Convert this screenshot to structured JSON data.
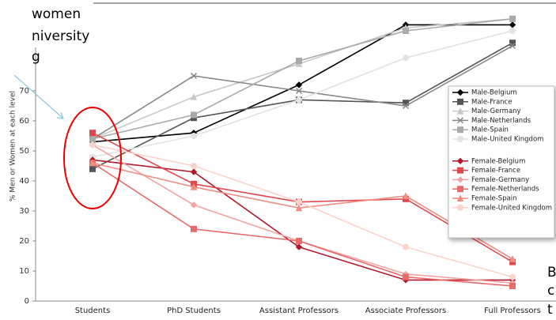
{
  "chart_data": {
    "type": "line",
    "y_label": "% Men or Women at each level",
    "categories": [
      "Students",
      "PhD Students",
      "Assistant Professors",
      "Associate Professors",
      "Full Professors"
    ],
    "ylim": [
      0,
      100
    ],
    "yticks": [
      0,
      10,
      20,
      30,
      40,
      50,
      60,
      70
    ],
    "series": [
      {
        "name": "Male-Belgium",
        "color": "#000000",
        "marker": "diamond",
        "values": [
          53,
          56,
          72,
          92,
          92
        ]
      },
      {
        "name": "Male-France",
        "color": "#555555",
        "marker": "square",
        "values": [
          44,
          61,
          67,
          66,
          86
        ]
      },
      {
        "name": "Male-Germany",
        "color": "#c8c8c8",
        "marker": "triangle",
        "values": [
          54,
          68,
          79,
          91,
          94
        ]
      },
      {
        "name": "Male-Netherlands",
        "color": "#888888",
        "marker": "x",
        "values": [
          54,
          75,
          70,
          65,
          85
        ]
      },
      {
        "name": "Male-Spain",
        "color": "#aaaaaa",
        "marker": "square",
        "values": [
          54,
          62,
          80,
          90,
          94
        ]
      },
      {
        "name": "Male-United Kingdom",
        "color": "#e2e2e2",
        "marker": "circle",
        "values": [
          48,
          55,
          67,
          81,
          90
        ]
      },
      {
        "name": "Female-Belgium",
        "color": "#b2182b",
        "marker": "diamond",
        "values": [
          47,
          43,
          18,
          7,
          7
        ]
      },
      {
        "name": "Female-France",
        "color": "#e0484f",
        "marker": "square",
        "values": [
          56,
          39,
          33,
          34,
          13
        ]
      },
      {
        "name": "Female-Germany",
        "color": "#f4a3a3",
        "marker": "diamond",
        "values": [
          52,
          32,
          20,
          9,
          6
        ]
      },
      {
        "name": "Female-Netherlands",
        "color": "#e86b6b",
        "marker": "square",
        "values": [
          46,
          24,
          20,
          8,
          5
        ]
      },
      {
        "name": "Female-Spain",
        "color": "#f08c80",
        "marker": "triangle",
        "values": [
          46,
          38,
          31,
          35,
          14
        ]
      },
      {
        "name": "Female-United Kingdom",
        "color": "#fbd3cb",
        "marker": "circle",
        "values": [
          52,
          45,
          33,
          18,
          8
        ]
      }
    ],
    "text_fragments": [
      "women",
      "niversity",
      "g",
      "B",
      "c",
      "t"
    ]
  }
}
